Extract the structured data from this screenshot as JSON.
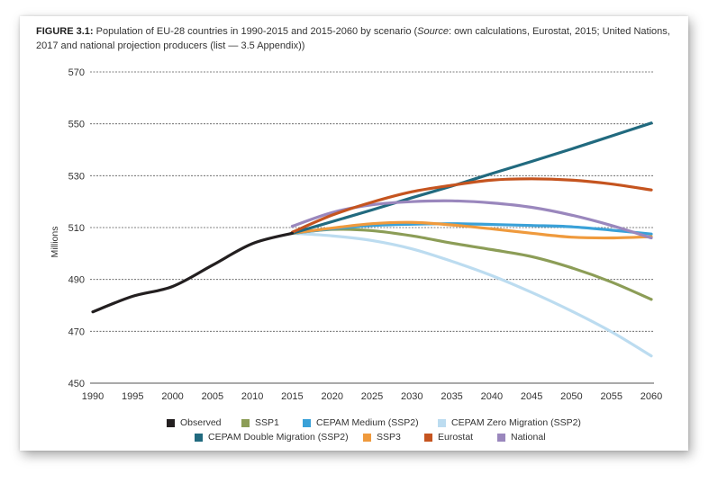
{
  "caption": {
    "figure_label": "FIGURE 3.1:",
    "text_before_source": " Population of EU-28 countries in 1990-2015 and 2015-2060 by scenario (",
    "source_label": "Source",
    "text_after_source": ": own calculations, Eurostat, 2015; United Nations, 2017 and national projection producers (list — 3.5 Appendix))"
  },
  "chart_data": {
    "type": "line",
    "title": "",
    "xlabel": "",
    "ylabel": "Millions",
    "xlim": [
      1990,
      2060
    ],
    "ylim": [
      450,
      570
    ],
    "x_ticks": [
      1990,
      1995,
      2000,
      2005,
      2010,
      2015,
      2020,
      2025,
      2030,
      2035,
      2040,
      2045,
      2050,
      2055,
      2060
    ],
    "y_ticks": [
      450,
      470,
      490,
      510,
      530,
      550,
      570
    ],
    "grid": "horizontal dashed",
    "legend_position": "bottom",
    "series": [
      {
        "name": "Observed",
        "color": "#231f20",
        "x": [
          1990,
          1995,
          2000,
          2005,
          2010,
          2015
        ],
        "y": [
          477.5,
          483.5,
          487.3,
          495.5,
          503.8,
          507.8
        ]
      },
      {
        "name": "SSP1",
        "color": "#8c9d57",
        "x": [
          2015,
          2020,
          2025,
          2030,
          2035,
          2040,
          2045,
          2050,
          2055,
          2060
        ],
        "y": [
          507.8,
          509.3,
          508.8,
          506.8,
          504.0,
          501.5,
          498.8,
          494.5,
          489.0,
          482.3
        ]
      },
      {
        "name": "CEPAM Medium (SSP2)",
        "color": "#3aa1d8",
        "x": [
          2015,
          2020,
          2025,
          2030,
          2035,
          2040,
          2045,
          2050,
          2055,
          2060
        ],
        "y": [
          507.8,
          509.5,
          510.8,
          511.3,
          511.5,
          511.2,
          510.8,
          510.3,
          509.0,
          507.5
        ]
      },
      {
        "name": "CEPAM Zero Migration (SSP2)",
        "color": "#bcdcf0",
        "x": [
          2015,
          2020,
          2025,
          2030,
          2035,
          2040,
          2045,
          2050,
          2055,
          2060
        ],
        "y": [
          507.8,
          506.8,
          505.0,
          501.8,
          497.0,
          491.5,
          485.0,
          477.8,
          469.8,
          460.5
        ]
      },
      {
        "name": "CEPAM Double Migration (SSP2)",
        "color": "#216a7f",
        "x": [
          2015,
          2020,
          2025,
          2030,
          2035,
          2040,
          2045,
          2050,
          2055,
          2060
        ],
        "y": [
          507.8,
          512.3,
          516.8,
          521.5,
          526.0,
          530.8,
          535.5,
          540.3,
          545.3,
          550.3
        ]
      },
      {
        "name": "SSP3",
        "color": "#ef9a3d",
        "x": [
          2015,
          2020,
          2025,
          2030,
          2035,
          2040,
          2045,
          2050,
          2055,
          2060
        ],
        "y": [
          507.8,
          509.8,
          511.5,
          512.0,
          511.0,
          509.5,
          507.8,
          506.3,
          506.0,
          506.5
        ]
      },
      {
        "name": "Eurostat",
        "color": "#c5541f",
        "x": [
          2015,
          2020,
          2025,
          2030,
          2035,
          2040,
          2045,
          2050,
          2055,
          2060
        ],
        "y": [
          508.2,
          514.8,
          519.8,
          523.8,
          526.3,
          528.3,
          528.8,
          528.3,
          526.8,
          524.5
        ]
      },
      {
        "name": "National",
        "color": "#9a87bd",
        "x": [
          2015,
          2020,
          2025,
          2030,
          2035,
          2040,
          2045,
          2050,
          2055,
          2060
        ],
        "y": [
          510.5,
          515.8,
          518.8,
          520.0,
          520.3,
          519.5,
          517.8,
          514.8,
          510.8,
          506.0
        ]
      }
    ]
  },
  "legend": {
    "row1": [
      "Observed",
      "SSP1",
      "CEPAM Medium (SSP2)",
      "CEPAM Zero Migration (SSP2)"
    ],
    "row2": [
      "CEPAM Double Migration (SSP2)",
      "SSP3",
      "Eurostat",
      "National"
    ]
  }
}
